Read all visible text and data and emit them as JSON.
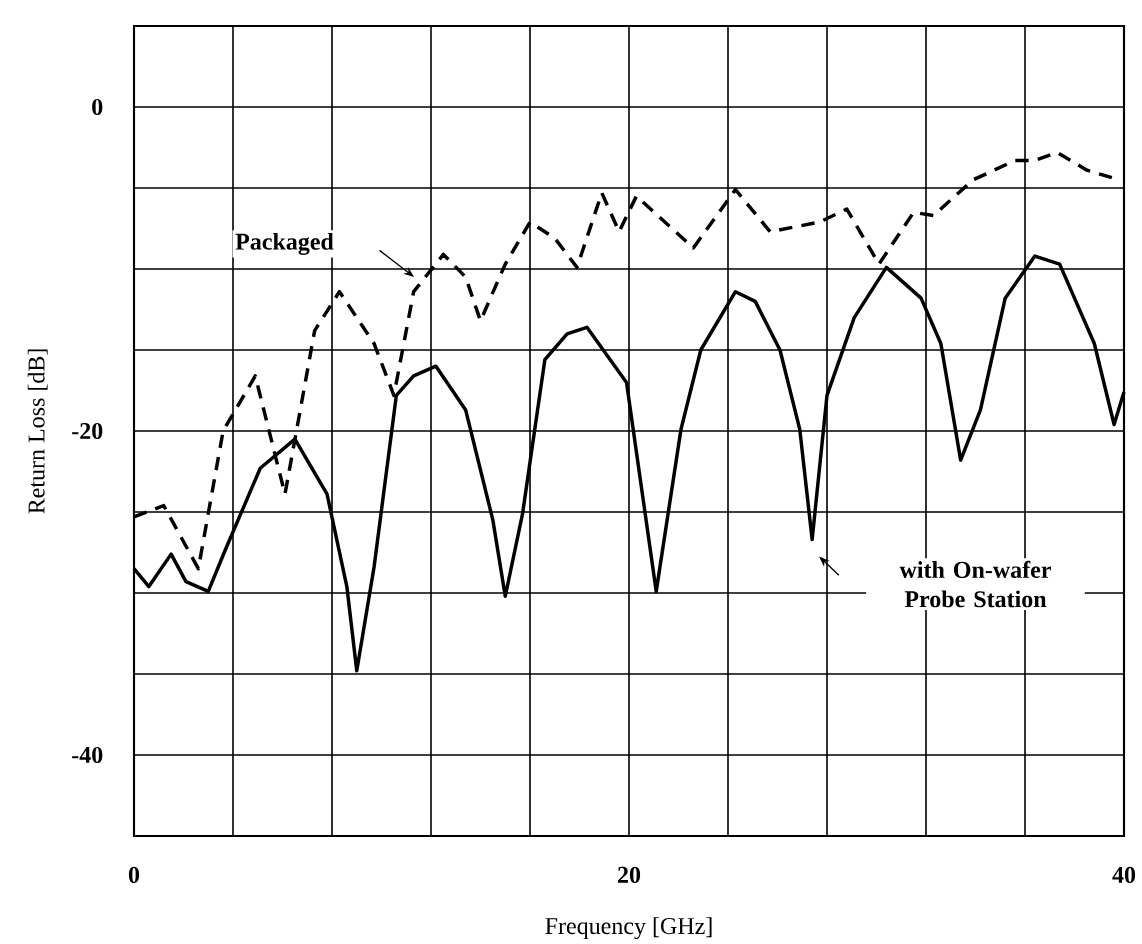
{
  "chart_data": {
    "type": "line",
    "xlabel": "Frequency [GHz]",
    "ylabel": "Return Loss [dB]",
    "xlim": [
      0,
      40
    ],
    "ylim": [
      -45,
      5
    ],
    "xticks": [
      0,
      {
        "value": 4,
        "label": null
      },
      {
        "value": 8,
        "label": null
      },
      {
        "value": 12,
        "label": null
      },
      {
        "value": 16,
        "label": null
      },
      20,
      {
        "value": 24,
        "label": null
      },
      {
        "value": 28,
        "label": null
      },
      {
        "value": 32,
        "label": null
      },
      {
        "value": 36,
        "label": null
      },
      40
    ],
    "yticks": [
      {
        "value": -45,
        "label": null
      },
      -40,
      {
        "value": -35,
        "label": null
      },
      {
        "value": -30,
        "label": null
      },
      {
        "value": -25,
        "label": null
      },
      -20,
      {
        "value": -15,
        "label": null
      },
      {
        "value": -10,
        "label": null
      },
      {
        "value": -5,
        "label": null
      },
      0,
      {
        "value": 5,
        "label": null
      }
    ],
    "grid": true,
    "marker": "none",
    "series": [
      {
        "color": "#000000",
        "line_style": "dashed",
        "x": [
          0,
          1.2,
          2.6,
          3.6,
          4.9,
          6.1,
          7.3,
          8.3,
          9.7,
          10.5,
          11.3,
          12.5,
          13.4,
          14.0,
          15.0,
          16.0,
          17.0,
          17.9,
          18.9,
          19.6,
          20.3,
          22.6,
          24.3,
          25.7,
          27.7,
          28.8,
          30.1,
          31.5,
          32.3,
          33.9,
          35.6,
          36.4,
          37.3,
          38.5,
          39.8
        ],
        "values": [
          -25.3,
          -24.6,
          -28.5,
          -20,
          -16.6,
          -23.9,
          -13.8,
          -11.4,
          -14.6,
          -17.8,
          -11.4,
          -9.1,
          -10.5,
          -13.2,
          -9.7,
          -7.1,
          -8.1,
          -9.9,
          -5.3,
          -7.7,
          -5.5,
          -8.7,
          -5.1,
          -7.7,
          -7.1,
          -6.3,
          -9.7,
          -6.5,
          -6.7,
          -4.5,
          -3.3,
          -3.3,
          -2.8,
          -3.9,
          -4.5
        ]
      },
      {
        "color": "#000000",
        "line_style": "solid",
        "x": [
          0,
          0.6,
          1.5,
          2.1,
          3.0,
          3.7,
          5.1,
          6.5,
          7.8,
          8.6,
          9.0,
          9.7,
          10.6,
          11.3,
          12.2,
          13.4,
          14.5,
          15.0,
          15.7,
          16.6,
          17.5,
          18.3,
          19.9,
          21.1,
          22.1,
          22.9,
          24.3,
          25.1,
          26.1,
          26.9,
          27.4,
          28.0,
          29.1,
          30.4,
          31.8,
          32.6,
          33.4,
          34.2,
          35.2,
          36.4,
          37.4,
          38.8,
          39.6,
          40
        ],
        "values": [
          -28.5,
          -29.6,
          -27.6,
          -29.3,
          -29.9,
          -27.3,
          -22.3,
          -20.5,
          -23.9,
          -29.6,
          -34.8,
          -28.4,
          -17.8,
          -16.6,
          -16.0,
          -18.7,
          -25.5,
          -30.2,
          -25.1,
          -15.6,
          -14.0,
          -13.6,
          -17.0,
          -29.9,
          -19.9,
          -15.0,
          -11.4,
          -12.0,
          -15.0,
          -19.9,
          -26.7,
          -17.8,
          -13.0,
          -9.9,
          -11.8,
          -14.6,
          -21.8,
          -18.7,
          -11.8,
          -9.2,
          -9.7,
          -14.6,
          -19.6,
          -17.6
        ]
      }
    ],
    "annotations": [
      "Packaged",
      "with On-wafer Probe Station"
    ]
  }
}
